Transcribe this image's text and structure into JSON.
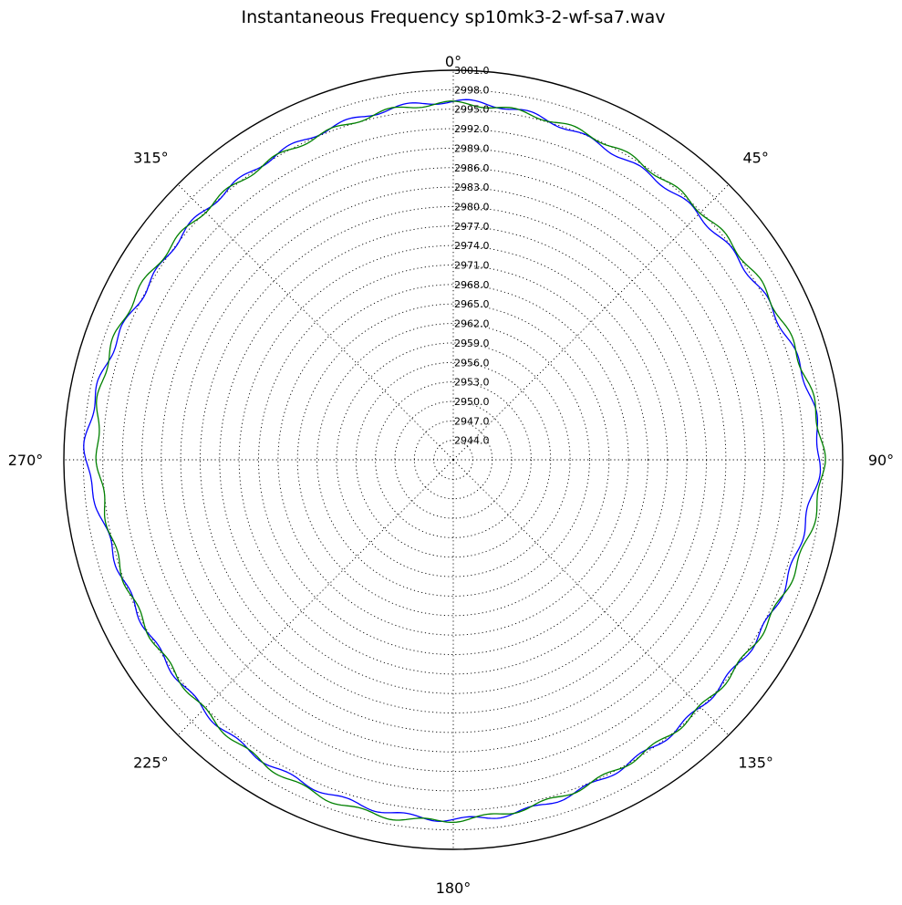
{
  "chart_data": {
    "type": "line",
    "projection": "polar",
    "title": "Instantaneous Frequency  sp10mk3-2-wf-sa7.wav",
    "theta_zero": "top",
    "theta_direction": "clockwise",
    "theta_ticks": [
      0,
      45,
      90,
      135,
      180,
      225,
      270,
      315
    ],
    "theta_tick_labels": [
      "0°",
      "45°",
      "90°",
      "135°",
      "180°",
      "225°",
      "270°",
      "315°"
    ],
    "r_ticks": [
      2944.0,
      2947.0,
      2950.0,
      2953.0,
      2956.0,
      2959.0,
      2962.0,
      2965.0,
      2968.0,
      2971.0,
      2974.0,
      2977.0,
      2980.0,
      2983.0,
      2986.0,
      2989.0,
      2992.0,
      2995.0,
      2998.0,
      3001.0
    ],
    "r_tick_labels": [
      "2944.0",
      "2947.0",
      "2950.0",
      "2953.0",
      "2956.0",
      "2959.0",
      "2962.0",
      "2965.0",
      "2968.0",
      "2971.0",
      "2974.0",
      "2977.0",
      "2980.0",
      "2983.0",
      "2986.0",
      "2989.0",
      "2992.0",
      "2995.0",
      "2998.0",
      "3001.0"
    ],
    "rlim": [
      2941.0,
      3001.0
    ],
    "grid": true,
    "legend": "none",
    "series": [
      {
        "color": "#0000ff",
        "theta_deg": [
          0,
          10,
          20,
          30,
          40,
          50,
          60,
          70,
          80,
          90,
          100,
          110,
          120,
          130,
          140,
          150,
          160,
          170,
          180,
          190,
          200,
          210,
          220,
          230,
          240,
          250,
          260,
          270,
          280,
          290,
          300,
          310,
          320,
          330,
          340,
          350
        ],
        "r": [
          2996.2,
          2995.8,
          2994.9,
          2994.3,
          2994.4,
          2994.5,
          2995.0,
          2995.8,
          2996.9,
          2997.4,
          2996.1,
          2995.7,
          2995.3,
          2994.9,
          2994.9,
          2995.0,
          2995.6,
          2996.2,
          2996.4,
          2996.2,
          2995.9,
          2995.8,
          2995.6,
          2995.2,
          2995.0,
          2995.1,
          2995.8,
          2997.6,
          2997.0,
          2996.0,
          2995.1,
          2995.3,
          2995.2,
          2995.3,
          2995.5,
          2995.9
        ]
      },
      {
        "color": "#008000",
        "theta_deg": [
          0,
          10,
          20,
          30,
          40,
          50,
          60,
          70,
          80,
          90,
          100,
          110,
          120,
          130,
          140,
          150,
          160,
          170,
          180,
          190,
          200,
          210,
          220,
          230,
          240,
          250,
          260,
          270,
          280,
          290,
          300,
          310,
          320,
          330,
          340,
          350
        ],
        "r": [
          2995.9,
          2995.6,
          2995.3,
          2995.1,
          2995.0,
          2995.2,
          2995.6,
          2996.2,
          2997.1,
          2998.0,
          2997.2,
          2996.1,
          2995.4,
          2995.0,
          2994.9,
          2994.9,
          2995.3,
          2995.9,
          2996.5,
          2996.9,
          2996.7,
          2996.2,
          2995.7,
          2995.1,
          2994.9,
          2994.9,
          2995.1,
          2995.7,
          2996.4,
          2996.4,
          2995.9,
          2995.4,
          2995.1,
          2995.0,
          2995.1,
          2995.7
        ]
      }
    ]
  }
}
